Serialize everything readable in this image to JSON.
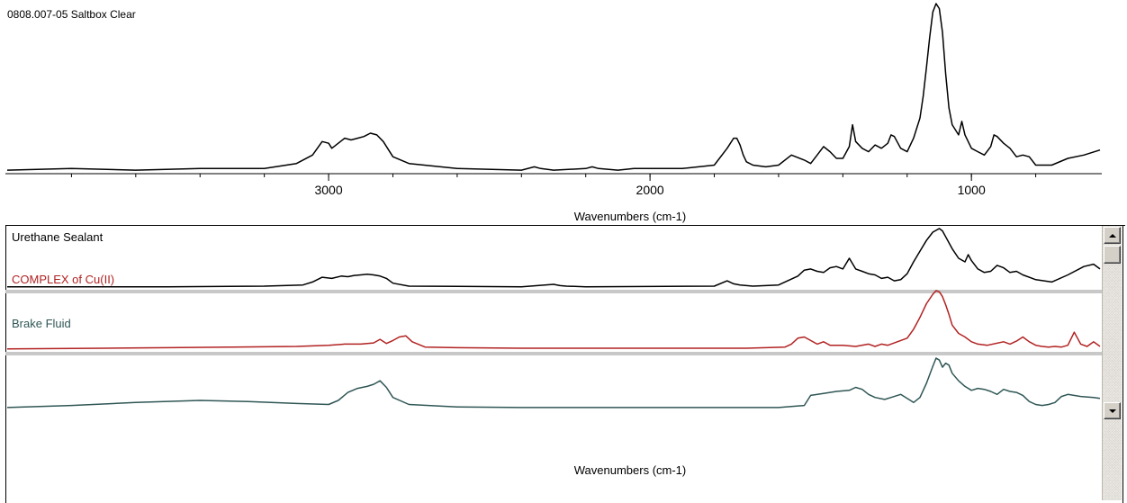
{
  "colors": {
    "black_series": "#000000",
    "red_series": "#b22222",
    "teal_series": "#2f5655",
    "separator": "#c8c8c8"
  },
  "top": {
    "title": "0808.007-05 Saltbox Clear",
    "xlabel": "Wavenumbers (cm-1)"
  },
  "bottom": {
    "labels": [
      "Urethane Sealant",
      "COMPLEX of Cu(II)",
      "Brake Fluid"
    ],
    "xlabel": "Wavenumbers (cm-1)"
  },
  "scrollbar": {
    "up_icon": "scroll-up-arrow-icon",
    "down_icon": "scroll-down-arrow-icon"
  },
  "chart_data": [
    {
      "type": "line",
      "title": "0808.007-05 Saltbox Clear",
      "xlabel": "Wavenumbers (cm-1)",
      "ylabel": "",
      "x_reversed": true,
      "xlim": [
        4000,
        600
      ],
      "ylim": [
        0,
        1
      ],
      "xticks": [
        3000,
        2000,
        1000
      ],
      "grid": false,
      "series": [
        {
          "name": "0808.007-05 Saltbox Clear",
          "color": "#000000",
          "x": [
            4000,
            3800,
            3600,
            3400,
            3200,
            3100,
            3050,
            3020,
            3000,
            2990,
            2970,
            2950,
            2930,
            2910,
            2890,
            2870,
            2850,
            2830,
            2800,
            2750,
            2600,
            2400,
            2360,
            2340,
            2300,
            2200,
            2180,
            2160,
            2100,
            2050,
            2000,
            1900,
            1800,
            1760,
            1740,
            1730,
            1720,
            1710,
            1700,
            1680,
            1640,
            1600,
            1560,
            1520,
            1500,
            1480,
            1460,
            1440,
            1420,
            1400,
            1380,
            1370,
            1360,
            1340,
            1320,
            1300,
            1280,
            1260,
            1250,
            1240,
            1220,
            1200,
            1180,
            1160,
            1150,
            1140,
            1130,
            1120,
            1110,
            1100,
            1090,
            1080,
            1070,
            1060,
            1040,
            1030,
            1020,
            1000,
            980,
            960,
            940,
            930,
            920,
            900,
            880,
            860,
            840,
            820,
            800,
            750,
            700,
            650,
            600
          ],
          "y": [
            0.01,
            0.02,
            0.01,
            0.02,
            0.02,
            0.05,
            0.1,
            0.18,
            0.17,
            0.14,
            0.17,
            0.2,
            0.19,
            0.2,
            0.21,
            0.23,
            0.22,
            0.18,
            0.09,
            0.05,
            0.02,
            0.01,
            0.03,
            0.02,
            0.01,
            0.02,
            0.03,
            0.02,
            0.01,
            0.02,
            0.02,
            0.02,
            0.04,
            0.14,
            0.2,
            0.2,
            0.16,
            0.1,
            0.06,
            0.04,
            0.03,
            0.04,
            0.1,
            0.07,
            0.05,
            0.1,
            0.15,
            0.12,
            0.08,
            0.08,
            0.15,
            0.28,
            0.18,
            0.14,
            0.12,
            0.16,
            0.14,
            0.17,
            0.22,
            0.21,
            0.14,
            0.12,
            0.2,
            0.32,
            0.45,
            0.62,
            0.8,
            0.95,
            1.0,
            0.97,
            0.83,
            0.58,
            0.38,
            0.28,
            0.22,
            0.3,
            0.22,
            0.14,
            0.12,
            0.1,
            0.15,
            0.22,
            0.21,
            0.17,
            0.14,
            0.09,
            0.1,
            0.09,
            0.04,
            0.04,
            0.08,
            0.1,
            0.13
          ]
        }
      ]
    },
    {
      "type": "line",
      "title": "",
      "xlabel": "Wavenumbers (cm-1)",
      "ylabel": "",
      "x_reversed": true,
      "xlim": [
        4000,
        600
      ],
      "ylim": [
        0,
        1
      ],
      "xticks": [
        3000,
        2000,
        1000
      ],
      "grid": false,
      "series": [
        {
          "name": "Urethane Sealant",
          "color": "#000000",
          "x": [
            4000,
            3700,
            3500,
            3200,
            3080,
            3050,
            3020,
            2990,
            2960,
            2940,
            2920,
            2900,
            2880,
            2860,
            2840,
            2820,
            2800,
            2750,
            2400,
            2300,
            2280,
            2260,
            2200,
            1800,
            1760,
            1740,
            1720,
            1680,
            1600,
            1540,
            1520,
            1500,
            1480,
            1460,
            1440,
            1420,
            1400,
            1380,
            1360,
            1340,
            1320,
            1300,
            1280,
            1260,
            1240,
            1220,
            1200,
            1180,
            1160,
            1140,
            1120,
            1100,
            1090,
            1080,
            1060,
            1040,
            1020,
            1010,
            1000,
            980,
            960,
            940,
            920,
            900,
            880,
            860,
            840,
            800,
            750,
            700,
            650,
            620,
            600
          ],
          "y": [
            0.02,
            0.02,
            0.02,
            0.03,
            0.05,
            0.1,
            0.18,
            0.16,
            0.2,
            0.19,
            0.21,
            0.22,
            0.23,
            0.22,
            0.2,
            0.16,
            0.08,
            0.03,
            0.02,
            0.06,
            0.04,
            0.03,
            0.02,
            0.03,
            0.12,
            0.07,
            0.05,
            0.03,
            0.05,
            0.2,
            0.3,
            0.32,
            0.28,
            0.26,
            0.34,
            0.36,
            0.32,
            0.5,
            0.32,
            0.28,
            0.24,
            0.22,
            0.16,
            0.18,
            0.12,
            0.14,
            0.24,
            0.44,
            0.62,
            0.8,
            0.94,
            1.0,
            0.96,
            0.86,
            0.66,
            0.5,
            0.44,
            0.56,
            0.46,
            0.32,
            0.26,
            0.28,
            0.38,
            0.34,
            0.26,
            0.28,
            0.22,
            0.14,
            0.1,
            0.22,
            0.36,
            0.4,
            0.32
          ]
        },
        {
          "name": "COMPLEX of Cu(II)",
          "color": "#b22222",
          "x": [
            4000,
            3700,
            3500,
            3300,
            3100,
            3000,
            2950,
            2900,
            2860,
            2840,
            2820,
            2800,
            2780,
            2760,
            2740,
            2700,
            2600,
            2400,
            1700,
            1580,
            1560,
            1540,
            1520,
            1500,
            1480,
            1460,
            1440,
            1400,
            1360,
            1320,
            1300,
            1280,
            1260,
            1240,
            1200,
            1180,
            1160,
            1140,
            1120,
            1110,
            1100,
            1090,
            1080,
            1070,
            1060,
            1040,
            1020,
            1000,
            980,
            950,
            900,
            880,
            860,
            840,
            820,
            800,
            780,
            760,
            740,
            720,
            700,
            680,
            660,
            640,
            620,
            600
          ],
          "y": [
            0.02,
            0.03,
            0.04,
            0.05,
            0.06,
            0.08,
            0.1,
            0.1,
            0.12,
            0.18,
            0.11,
            0.16,
            0.22,
            0.24,
            0.14,
            0.05,
            0.04,
            0.03,
            0.03,
            0.05,
            0.1,
            0.2,
            0.22,
            0.16,
            0.1,
            0.14,
            0.08,
            0.08,
            0.06,
            0.1,
            0.06,
            0.1,
            0.08,
            0.12,
            0.2,
            0.35,
            0.55,
            0.78,
            0.94,
            1.0,
            0.98,
            0.9,
            0.76,
            0.6,
            0.42,
            0.28,
            0.22,
            0.14,
            0.1,
            0.08,
            0.14,
            0.1,
            0.15,
            0.22,
            0.14,
            0.08,
            0.06,
            0.05,
            0.06,
            0.05,
            0.08,
            0.3,
            0.1,
            0.06,
            0.14,
            0.06
          ]
        },
        {
          "name": "Brake Fluid",
          "color": "#2f5655",
          "x": [
            4000,
            3800,
            3600,
            3400,
            3250,
            3100,
            3000,
            2970,
            2940,
            2910,
            2880,
            2860,
            2840,
            2820,
            2800,
            2750,
            2600,
            2400,
            1800,
            1600,
            1520,
            1500,
            1460,
            1420,
            1380,
            1360,
            1340,
            1320,
            1300,
            1270,
            1250,
            1220,
            1200,
            1180,
            1160,
            1140,
            1120,
            1110,
            1100,
            1090,
            1080,
            1070,
            1060,
            1040,
            1020,
            1000,
            980,
            960,
            940,
            920,
            900,
            880,
            860,
            840,
            820,
            800,
            780,
            760,
            740,
            720,
            700,
            660,
            620,
            600
          ],
          "y": [
            0.02,
            0.06,
            0.12,
            0.16,
            0.14,
            0.1,
            0.08,
            0.16,
            0.32,
            0.4,
            0.44,
            0.48,
            0.55,
            0.42,
            0.22,
            0.08,
            0.03,
            0.02,
            0.02,
            0.02,
            0.06,
            0.26,
            0.3,
            0.34,
            0.36,
            0.42,
            0.38,
            0.28,
            0.22,
            0.18,
            0.22,
            0.28,
            0.2,
            0.12,
            0.22,
            0.5,
            0.84,
            1.0,
            0.96,
            0.82,
            0.9,
            0.86,
            0.7,
            0.55,
            0.44,
            0.36,
            0.4,
            0.38,
            0.34,
            0.28,
            0.38,
            0.34,
            0.32,
            0.26,
            0.14,
            0.08,
            0.06,
            0.08,
            0.12,
            0.24,
            0.28,
            0.24,
            0.22,
            0.2
          ]
        }
      ]
    }
  ]
}
